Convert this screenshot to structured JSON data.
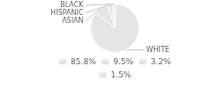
{
  "chart_data": {
    "type": "pie",
    "categories": [
      "WHITE",
      "ASIAN",
      "HISPANIC",
      "BLACK"
    ],
    "values": [
      85.8,
      9.5,
      3.2,
      1.5
    ],
    "value_labels": [
      "85.8%",
      "9.5%",
      "3.2%",
      "1.5%"
    ]
  }
}
